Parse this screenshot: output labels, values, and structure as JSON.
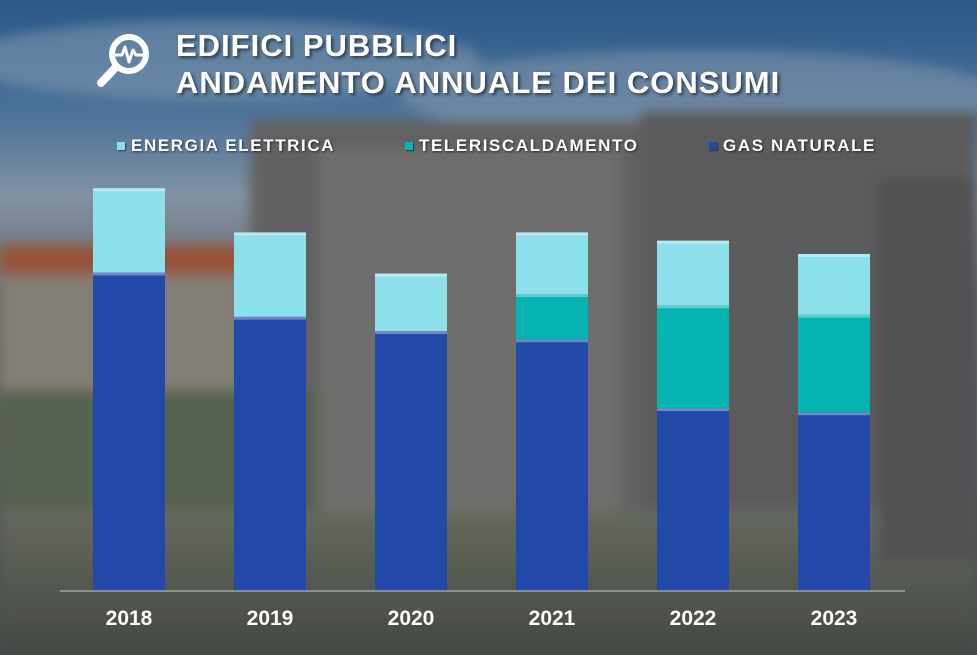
{
  "title": {
    "line1": "EDIFICI PUBBLICI",
    "line2": "ANDAMENTO ANNUALE DEI CONSUMI",
    "icon": "magnifier-pulse-icon"
  },
  "colors": {
    "gas_naturale": "#2248a8",
    "teleriscaldamento": "#04b4b0",
    "energia_elettrica": "#8ce0ea",
    "text": "#ffffff",
    "axis": "#c8ccd0"
  },
  "chart_data": {
    "type": "bar",
    "stacked": true,
    "categories": [
      "2018",
      "2019",
      "2020",
      "2021",
      "2022",
      "2023"
    ],
    "series": [
      {
        "name": "GAS NATURALE",
        "values": [
          310,
          267,
          253,
          245,
          178,
          174
        ]
      },
      {
        "name": "TELERISCALDAMENTO",
        "values": [
          0,
          0,
          0,
          44,
          100,
          95
        ]
      },
      {
        "name": "ENERGIA ELETTRICA",
        "values": [
          82,
          82,
          56,
          60,
          63,
          59
        ]
      }
    ],
    "legend_order": [
      "ENERGIA ELETTRICA",
      "TELERISCALDAMENTO",
      "GAS NATURALE"
    ],
    "legend_position": "top",
    "title": "",
    "xlabel": "",
    "ylabel": "",
    "ylim": [
      0,
      400
    ],
    "grid": false,
    "y_axis_visible": false
  }
}
